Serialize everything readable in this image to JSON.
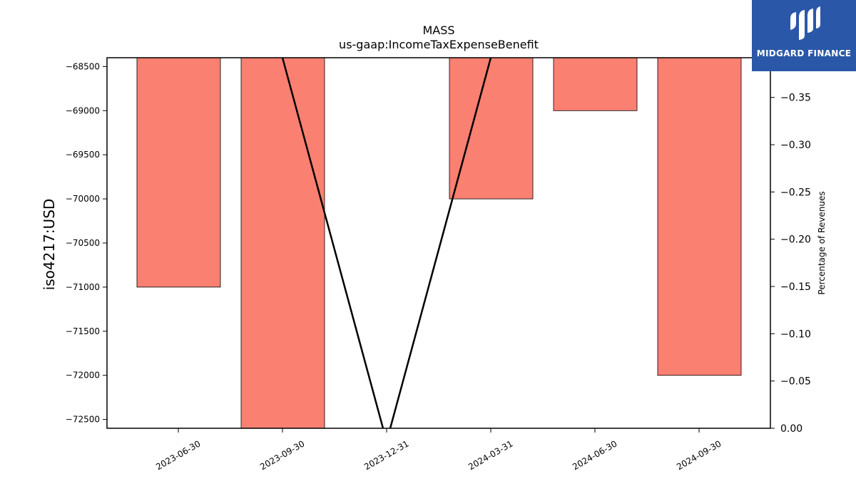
{
  "chart_data": {
    "type": "bar",
    "title": "MASS",
    "subtitle": "us-gaap:IncomeTaxExpenseBenefit",
    "ylabel": "iso4217:USD",
    "y2label": "Percentage of Revenues",
    "categories": [
      "2023-06-30",
      "2023-09-30",
      "2023-12-31",
      "2024-03-31",
      "2024-06-30",
      "2024-09-30"
    ],
    "series": [
      {
        "values": [
          -71000,
          -72600,
          null,
          -70000,
          -69000,
          -72000
        ]
      }
    ],
    "line_series": [
      {
        "x": [
          "2023-09-30",
          "2023-12-31",
          "2024-03-31"
        ],
        "values": [
          -0.392,
          0.014,
          -0.392
        ]
      }
    ],
    "ylim": [
      -72600,
      -68400
    ],
    "y2lim": [
      0.0,
      -0.392
    ],
    "yticks": [
      -68500,
      -69000,
      -69500,
      -70000,
      -70500,
      -71000,
      -71500,
      -72000,
      -72500
    ],
    "y2ticks": [
      "0.00",
      "−0.05",
      "−0.10",
      "−0.15",
      "−0.20",
      "−0.25",
      "−0.30",
      "−0.35"
    ],
    "yticks_labels": [
      "−68500",
      "−69000",
      "−69500",
      "−70000",
      "−70500",
      "−71000",
      "−71500",
      "−72000",
      "−72500"
    ],
    "colors": {
      "bar": "#fa8072",
      "line": "#000000"
    },
    "grid": false
  },
  "logo": {
    "text": "MIDGARD FINANCE",
    "background": "#2b57a8"
  }
}
